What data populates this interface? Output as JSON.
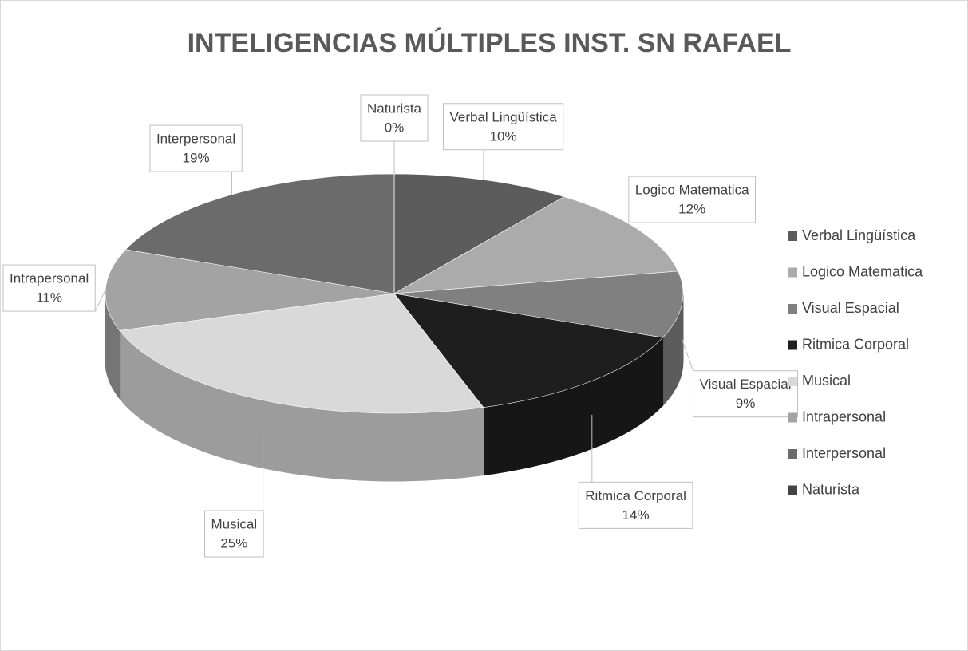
{
  "chart_data": {
    "type": "pie",
    "title": "INTELIGENCIAS MÚLTIPLES INST. SN RAFAEL",
    "categories": [
      "Verbal Lingüística",
      "Logico Matematica",
      "Visual Espacial",
      "Ritmica Corporal",
      "Musical",
      "Intrapersonal",
      "Interpersonal",
      "Naturista"
    ],
    "values": [
      10,
      12,
      9,
      14,
      25,
      11,
      19,
      0
    ],
    "value_labels": [
      "10%",
      "12%",
      "9%",
      "14%",
      "25%",
      "11%",
      "19%",
      "0%"
    ],
    "colors": [
      "#5c5c5c",
      "#ababab",
      "#808080",
      "#1e1e1e",
      "#d9d9d9",
      "#a3a3a3",
      "#6b6b6b",
      "#444444"
    ],
    "legend": "right"
  }
}
